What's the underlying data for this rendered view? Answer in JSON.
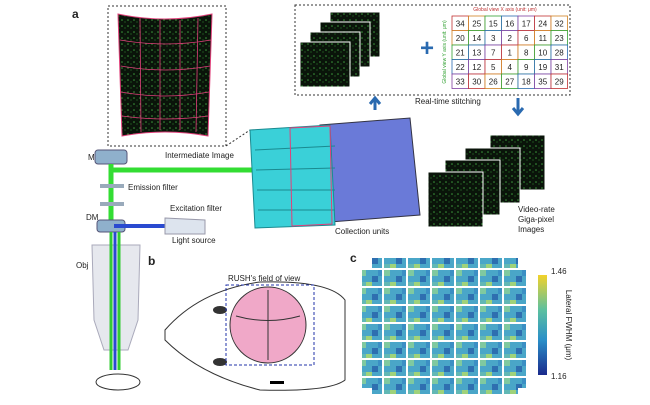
{
  "panels": {
    "a": "a",
    "b": "b",
    "c": "c"
  },
  "labels": {
    "intermediate": "Intermediate Image",
    "mirror": "M",
    "emission": "Emission filter",
    "excitation": "Excitation filter",
    "dm": "DM",
    "light": "Light source",
    "obj": "Obj",
    "collection": "Collection units",
    "stitching": "Real-time stitching",
    "video": [
      "Video-rate",
      "Giga-pixel",
      "Images"
    ],
    "fov": "RUSH's field of view",
    "x_axis": "Global view X axis (unit: μm)",
    "y_axis": "Global view Y axis (unit: μm)"
  },
  "tile_grid": [
    [
      34,
      25,
      15,
      16,
      17,
      24,
      32
    ],
    [
      20,
      14,
      3,
      2,
      6,
      11,
      23
    ],
    [
      21,
      13,
      7,
      1,
      8,
      10,
      28
    ],
    [
      22,
      12,
      5,
      4,
      9,
      19,
      31
    ],
    [
      33,
      30,
      26,
      27,
      18,
      35,
      29
    ]
  ],
  "colorbar": {
    "title": "Lateral FWHM (μm)",
    "max": "1.46",
    "min": "1.16"
  }
}
